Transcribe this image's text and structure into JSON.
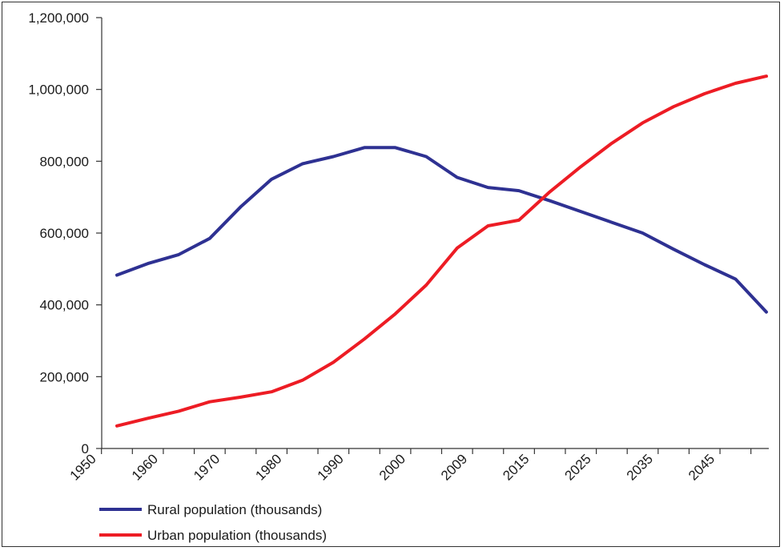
{
  "chart_data": {
    "type": "line",
    "x": [
      "1950",
      "1955",
      "1960",
      "1965",
      "1970",
      "1975",
      "1980",
      "1985",
      "1990",
      "1995",
      "2000",
      "2005",
      "2009",
      "2010",
      "2015",
      "2020",
      "2025",
      "2030",
      "2035",
      "2040",
      "2045",
      "2050"
    ],
    "x_tick_labels": [
      "1950",
      "1960",
      "1970",
      "1980",
      "1990",
      "2000",
      "2009",
      "2015",
      "2025",
      "2035",
      "2045"
    ],
    "ylim": [
      0,
      1200000
    ],
    "y_ticks": [
      0,
      200000,
      400000,
      600000,
      800000,
      1000000,
      1200000
    ],
    "y_tick_labels": [
      "0",
      "200,000",
      "400,000",
      "600,000",
      "800,000",
      "1,000,000",
      "1,200,000"
    ],
    "grid": false,
    "legend_position": "bottom-left",
    "series": [
      {
        "name": "Rural population (thousands)",
        "color": "#2e3192",
        "values": [
          483000,
          515000,
          540000,
          585000,
          673000,
          750000,
          793000,
          813000,
          838000,
          838000,
          813000,
          755000,
          727000,
          718000,
          690000,
          660000,
          630000,
          600000,
          555000,
          512000,
          472000,
          380000
        ]
      },
      {
        "name": "Urban population (thousands)",
        "color": "#ed1c24",
        "values": [
          63000,
          84000,
          104000,
          130000,
          143000,
          158000,
          190000,
          240000,
          305000,
          375000,
          455000,
          558000,
          620000,
          636000,
          715000,
          785000,
          850000,
          907000,
          952000,
          988000,
          1017000,
          1037000
        ]
      }
    ]
  }
}
